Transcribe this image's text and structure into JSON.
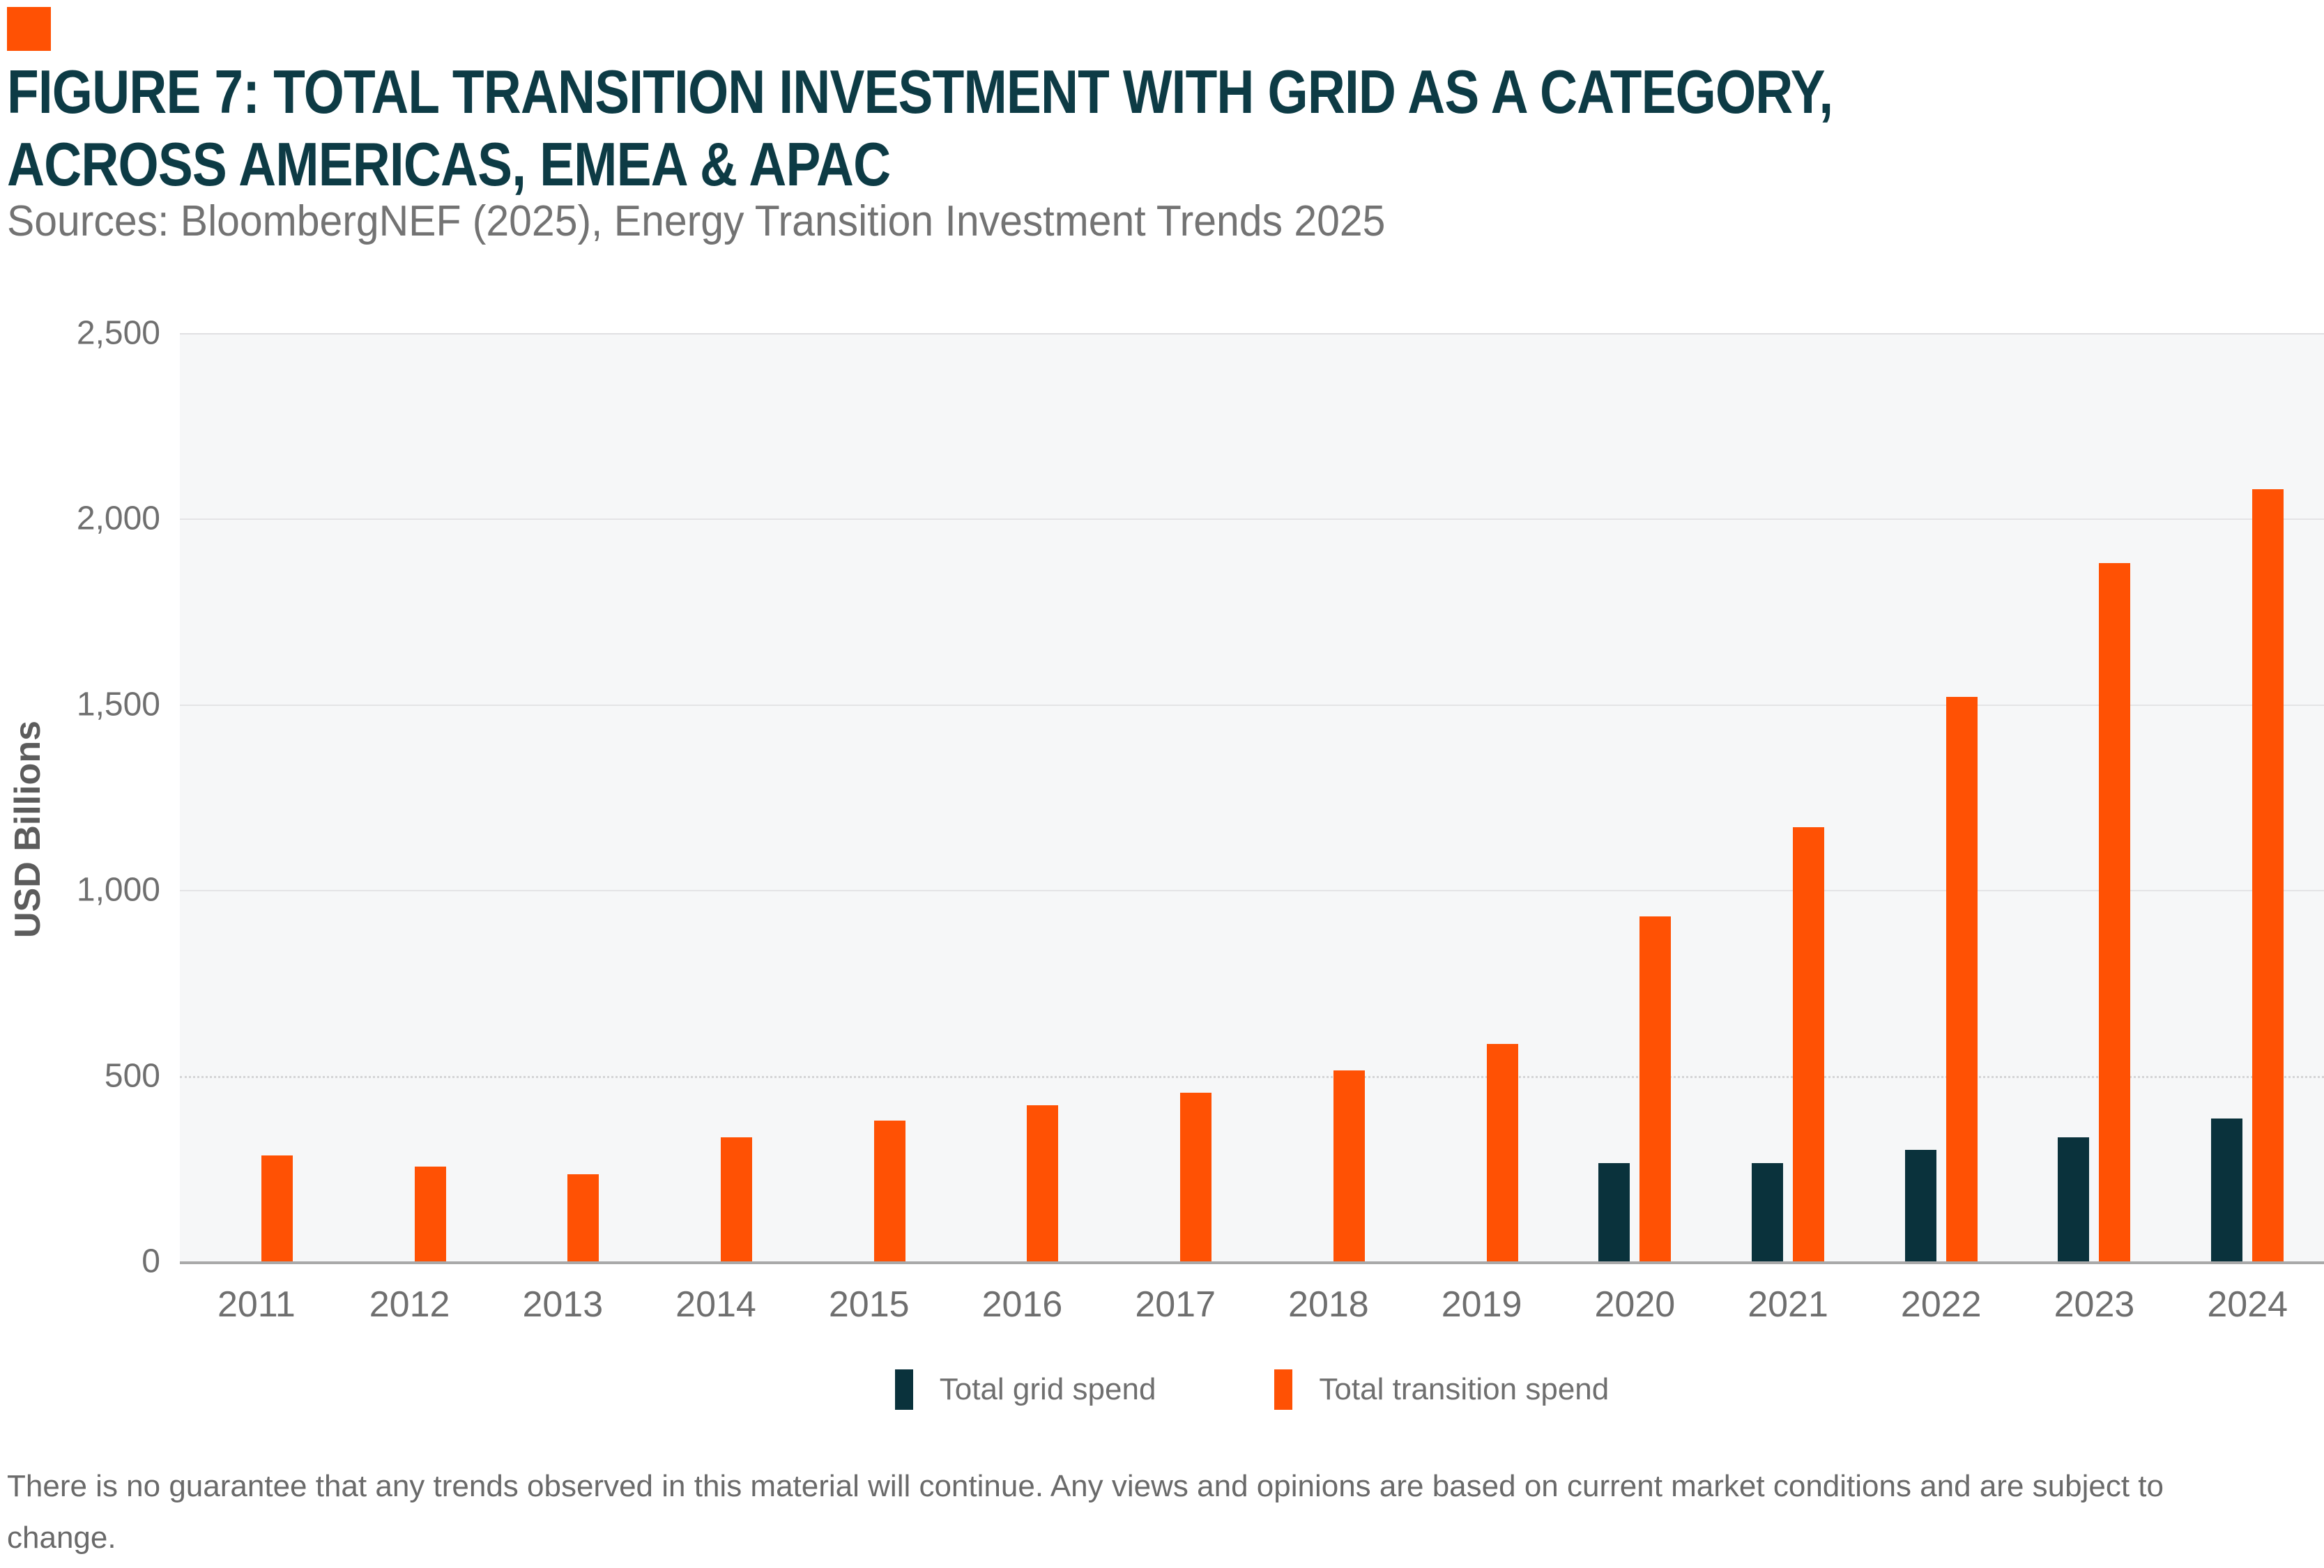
{
  "theme": {
    "accent_orange": "#ff5104",
    "grid_bar_navy": "#0a323c",
    "title_color": "#0d3b45",
    "plot_background": "#f6f7f8",
    "axis_line_gray": "#a9a9a9"
  },
  "header": {
    "title_line1": "FIGURE 7: TOTAL TRANSITION INVESTMENT WITH GRID AS A CATEGORY,",
    "title_line2": "ACROSS AMERICAS, EMEA & APAC",
    "sources": "Sources: BloombergNEF (2025), Energy Transition Investment Trends 2025"
  },
  "chart_data": {
    "type": "bar",
    "title": "Figure 7: Total transition investment with grid as a category, across Americas, EMEA & APAC",
    "categories": [
      "2011",
      "2012",
      "2013",
      "2014",
      "2015",
      "2016",
      "2017",
      "2018",
      "2019",
      "2020",
      "2021",
      "2022",
      "2023",
      "2024"
    ],
    "series": [
      {
        "name": "Total grid spend",
        "color": "#0a323c",
        "values": [
          null,
          null,
          null,
          null,
          null,
          null,
          null,
          null,
          null,
          265,
          265,
          300,
          335,
          385
        ]
      },
      {
        "name": "Total transition spend",
        "color": "#ff5104",
        "values": [
          285,
          255,
          235,
          335,
          380,
          420,
          455,
          515,
          585,
          930,
          1170,
          1520,
          1880,
          2080
        ]
      }
    ],
    "xlabel": "",
    "ylabel": "USD Billions",
    "ylim": [
      0,
      2500
    ],
    "yticks": [
      {
        "value": 0,
        "label": "0"
      },
      {
        "value": 500,
        "label": "500"
      },
      {
        "value": 1000,
        "label": "1,000"
      },
      {
        "value": 1500,
        "label": "1,500"
      },
      {
        "value": 2000,
        "label": "2,000"
      },
      {
        "value": 2500,
        "label": "2,500"
      }
    ],
    "grid": true,
    "legend_position": "bottom"
  },
  "footer": {
    "disclaimer": "There is no guarantee that any trends observed in this material will continue. Any views and opinions are based on current market conditions and are subject to change."
  }
}
